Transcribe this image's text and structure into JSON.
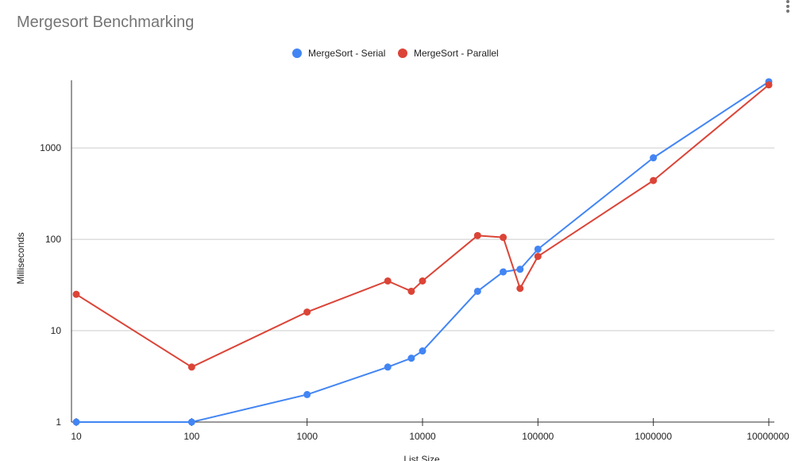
{
  "chart_data": {
    "type": "line",
    "title": "Mergesort Benchmarking",
    "xlabel": "List Size",
    "ylabel": "Milliseconds",
    "x_scale": "log",
    "y_scale": "log",
    "xlim": [
      10,
      10000000
    ],
    "ylim": [
      1,
      5500
    ],
    "x_ticks": [
      10,
      100,
      1000,
      10000,
      100000,
      1000000,
      10000000
    ],
    "x_tick_labels": [
      "10",
      "100",
      "1000",
      "10000",
      "100000",
      "1000000",
      "10000000"
    ],
    "y_ticks": [
      1,
      10,
      100,
      1000
    ],
    "y_tick_labels": [
      "1",
      "10",
      "100",
      "1000"
    ],
    "grid": true,
    "legend_position": "top",
    "series": [
      {
        "name": "MergeSort - Serial",
        "color": "#4285f4",
        "x": [
          10,
          100,
          1000,
          5000,
          8000,
          10000,
          30000,
          50000,
          70000,
          100000,
          1000000,
          10000000
        ],
        "y": [
          1,
          1,
          2,
          4,
          5,
          6,
          27,
          44,
          47,
          78,
          780,
          5300
        ]
      },
      {
        "name": "MergeSort - Parallel",
        "color": "#db4437",
        "x": [
          10,
          100,
          1000,
          5000,
          8000,
          10000,
          30000,
          50000,
          70000,
          100000,
          1000000,
          10000000
        ],
        "y": [
          25,
          4,
          16,
          35,
          27,
          35,
          110,
          105,
          29,
          65,
          440,
          4900
        ]
      }
    ]
  }
}
